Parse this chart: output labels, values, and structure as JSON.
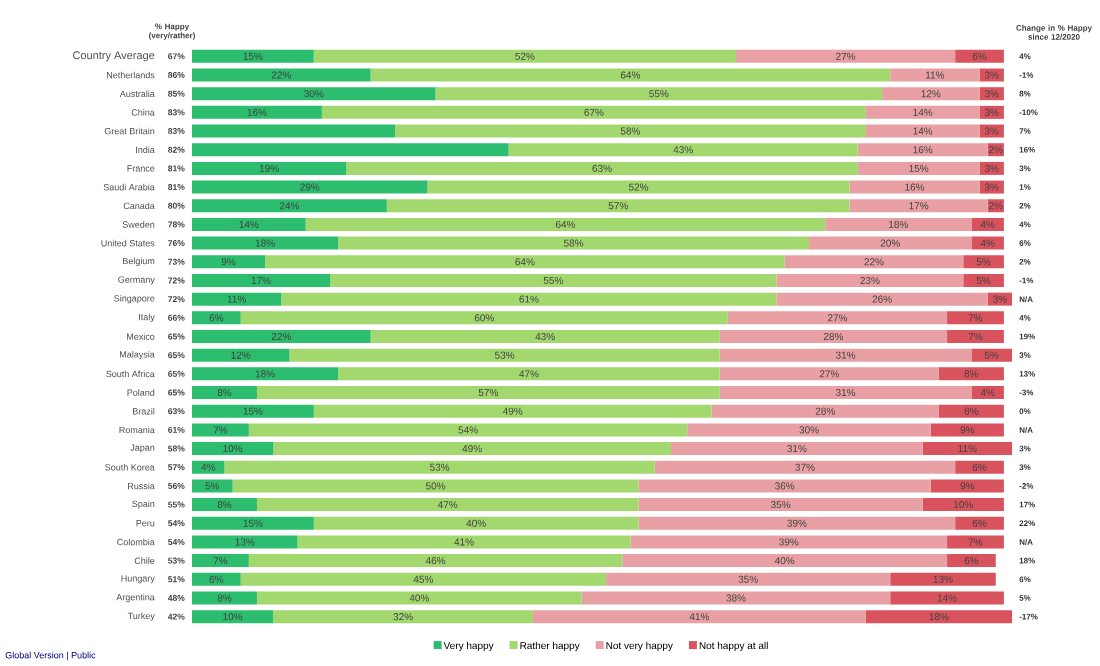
{
  "chart_data": {
    "type": "bar",
    "orientation": "horizontal",
    "stacked": true,
    "xlim": [
      0,
      101
    ],
    "tick_labels": "y",
    "legend": "bottom",
    "grid": false,
    "categories": [
      "Country Average",
      "Netherlands",
      "Australia",
      "China",
      "Great Britain",
      "India",
      "France",
      "Saudi Arabia",
      "Canada",
      "Sweden",
      "United States",
      "Belgium",
      "Germany",
      "Singapore",
      "Italy",
      "Mexico",
      "Malaysia",
      "South Africa",
      "Poland",
      "Brazil",
      "Romania",
      "Japan",
      "South Korea",
      "Russia",
      "Spain",
      "Peru",
      "Colombia",
      "Chile",
      "Hungary",
      "Argentina",
      "Turkey"
    ],
    "series": [
      {
        "name": "Very happy",
        "color": "#2dbd6e",
        "values": [
          15,
          22,
          30,
          16,
          25,
          39,
          19,
          29,
          24,
          14,
          18,
          9,
          17,
          11,
          6,
          22,
          12,
          18,
          8,
          15,
          7,
          10,
          4,
          5,
          8,
          15,
          13,
          7,
          6,
          8,
          10
        ],
        "value_labels": [
          "15%",
          "22%",
          "30%",
          "16%",
          null,
          null,
          "19%",
          "29%",
          "24%",
          "14%",
          "18%",
          "9%",
          "17%",
          "11%",
          "6%",
          "22%",
          "12%",
          "18%",
          "8%",
          "15%",
          "7%",
          "10%",
          "4%",
          "5%",
          "8%",
          "15%",
          "13%",
          "7%",
          "6%",
          "8%",
          "10%"
        ]
      },
      {
        "name": "Rather happy",
        "color": "#a3d86e",
        "values": [
          52,
          64,
          55,
          67,
          58,
          43,
          63,
          52,
          57,
          64,
          58,
          64,
          55,
          61,
          60,
          43,
          53,
          47,
          57,
          49,
          54,
          49,
          53,
          50,
          47,
          40,
          41,
          46,
          45,
          40,
          32
        ],
        "value_labels": [
          "52%",
          "64%",
          "55%",
          "67%",
          "58%",
          "43%",
          "63%",
          "52%",
          "57%",
          "64%",
          "58%",
          "64%",
          "55%",
          "61%",
          "60%",
          "43%",
          "53%",
          "47%",
          "57%",
          "49%",
          "54%",
          "49%",
          "53%",
          "50%",
          "47%",
          "40%",
          "41%",
          "46%",
          "45%",
          "40%",
          "32%"
        ]
      },
      {
        "name": "Not very happy",
        "color": "#e8a0a4",
        "values": [
          27,
          11,
          12,
          14,
          14,
          16,
          15,
          16,
          17,
          18,
          20,
          22,
          23,
          26,
          27,
          28,
          31,
          27,
          31,
          28,
          30,
          31,
          37,
          36,
          35,
          39,
          39,
          40,
          35,
          38,
          41
        ],
        "value_labels": [
          "27%",
          "11%",
          "12%",
          "14%",
          "14%",
          "16%",
          "15%",
          "16%",
          "17%",
          "18%",
          "20%",
          "22%",
          "23%",
          "26%",
          "27%",
          "28%",
          "31%",
          "27%",
          "31%",
          "28%",
          "30%",
          "31%",
          "37%",
          "36%",
          "35%",
          "39%",
          "39%",
          "40%",
          "35%",
          "38%",
          "41%"
        ]
      },
      {
        "name": "Not happy at all",
        "color": "#d9535e",
        "values": [
          6,
          3,
          3,
          3,
          3,
          2,
          3,
          3,
          2,
          4,
          4,
          5,
          5,
          3,
          7,
          7,
          5,
          8,
          4,
          8,
          9,
          11,
          6,
          9,
          10,
          6,
          7,
          6,
          13,
          14,
          18
        ],
        "value_labels": [
          "6%",
          "3%",
          "3%",
          "3%",
          "3%",
          "2%",
          "3%",
          "3%",
          "2%",
          "4%",
          "4%",
          "5%",
          "5%",
          "3%",
          "7%",
          "7%",
          "5%",
          "8%",
          "4%",
          "8%",
          "9%",
          "11%",
          "6%",
          "9%",
          "10%",
          "6%",
          "7%",
          "6%",
          "13%",
          "14%",
          "18%"
        ]
      }
    ],
    "annotations": [
      "% Happy (very/rather)",
      "Change in % Happy since 12/2020",
      "Global Version | Public",
      "67%",
      "86%",
      "85%",
      "83%",
      "83%",
      "82%",
      "81%",
      "81%",
      "80%",
      "78%",
      "76%",
      "73%",
      "72%",
      "72%",
      "66%",
      "65%",
      "65%",
      "65%",
      "65%",
      "63%",
      "61%",
      "58%",
      "57%",
      "56%",
      "55%",
      "54%",
      "54%",
      "53%",
      "51%",
      "48%",
      "42%",
      "4%",
      "-1%",
      "8%",
      "-10%",
      "7%",
      "16%",
      "3%",
      "1%",
      "2%",
      "4%",
      "6%",
      "2%",
      "-1%",
      "N/A",
      "4%",
      "19%",
      "3%",
      "13%",
      "-3%",
      "0%",
      "N/A",
      "3%",
      "3%",
      "-2%",
      "17%",
      "22%",
      "N/A",
      "18%",
      "6%",
      "5%",
      "-17%"
    ]
  }
}
